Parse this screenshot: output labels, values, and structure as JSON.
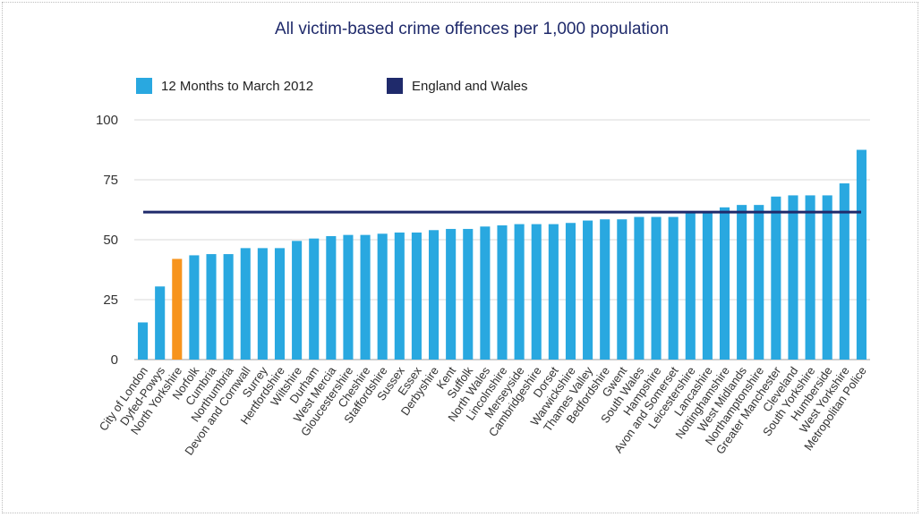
{
  "chart_data": {
    "type": "bar",
    "title": "All victim-based crime offences per 1,000 population",
    "xlabel": "",
    "ylabel": "",
    "ylim": [
      0,
      100
    ],
    "yticks": [
      0,
      25,
      50,
      75,
      100
    ],
    "grid": true,
    "legend_position": "top-left",
    "categories": [
      "City of London",
      "Dyfed-Powys",
      "North Yorkshire",
      "Norfolk",
      "Cumbria",
      "Northumbria",
      "Devon and Cornwall",
      "Surrey",
      "Hertfordshire",
      "Wiltshire",
      "Durham",
      "West Mercia",
      "Gloucestershire",
      "Cheshire",
      "Staffordshire",
      "Sussex",
      "Essex",
      "Derbyshire",
      "Kent",
      "Suffolk",
      "North Wales",
      "Lincolnshire",
      "Merseyside",
      "Cambridgeshire",
      "Dorset",
      "Warwickshire",
      "Thames Valley",
      "Bedfordshire",
      "Gwent",
      "South Wales",
      "Hampshire",
      "Avon and Somerset",
      "Leicestershire",
      "Lancashire",
      "Nottinghamshire",
      "West Midlands",
      "Northamptonshire",
      "Greater Manchester",
      "Cleveland",
      "South Yorkshire",
      "Humberside",
      "West Yorkshire",
      "Metropolitan Police"
    ],
    "series": [
      {
        "name": "12 Months to March 2012",
        "color": "#29a8e0",
        "values": [
          15.5,
          30.5,
          42,
          43.5,
          44,
          44,
          46.5,
          46.5,
          46.5,
          49.5,
          50.5,
          51.5,
          52,
          52,
          52.5,
          53,
          53,
          54,
          54.5,
          54.5,
          55.5,
          56,
          56.5,
          56.5,
          56.5,
          57,
          58,
          58.5,
          58.5,
          59.5,
          59.5,
          59.5,
          61,
          61,
          63.5,
          64.5,
          64.5,
          68,
          68.5,
          68.5,
          68.5,
          73.5,
          87.5
        ]
      },
      {
        "name": "England and Wales",
        "color": "#1f2a6b",
        "type": "line",
        "value": 61.5
      }
    ],
    "highlight": {
      "category": "North Yorkshire",
      "color": "#f7941d"
    }
  }
}
